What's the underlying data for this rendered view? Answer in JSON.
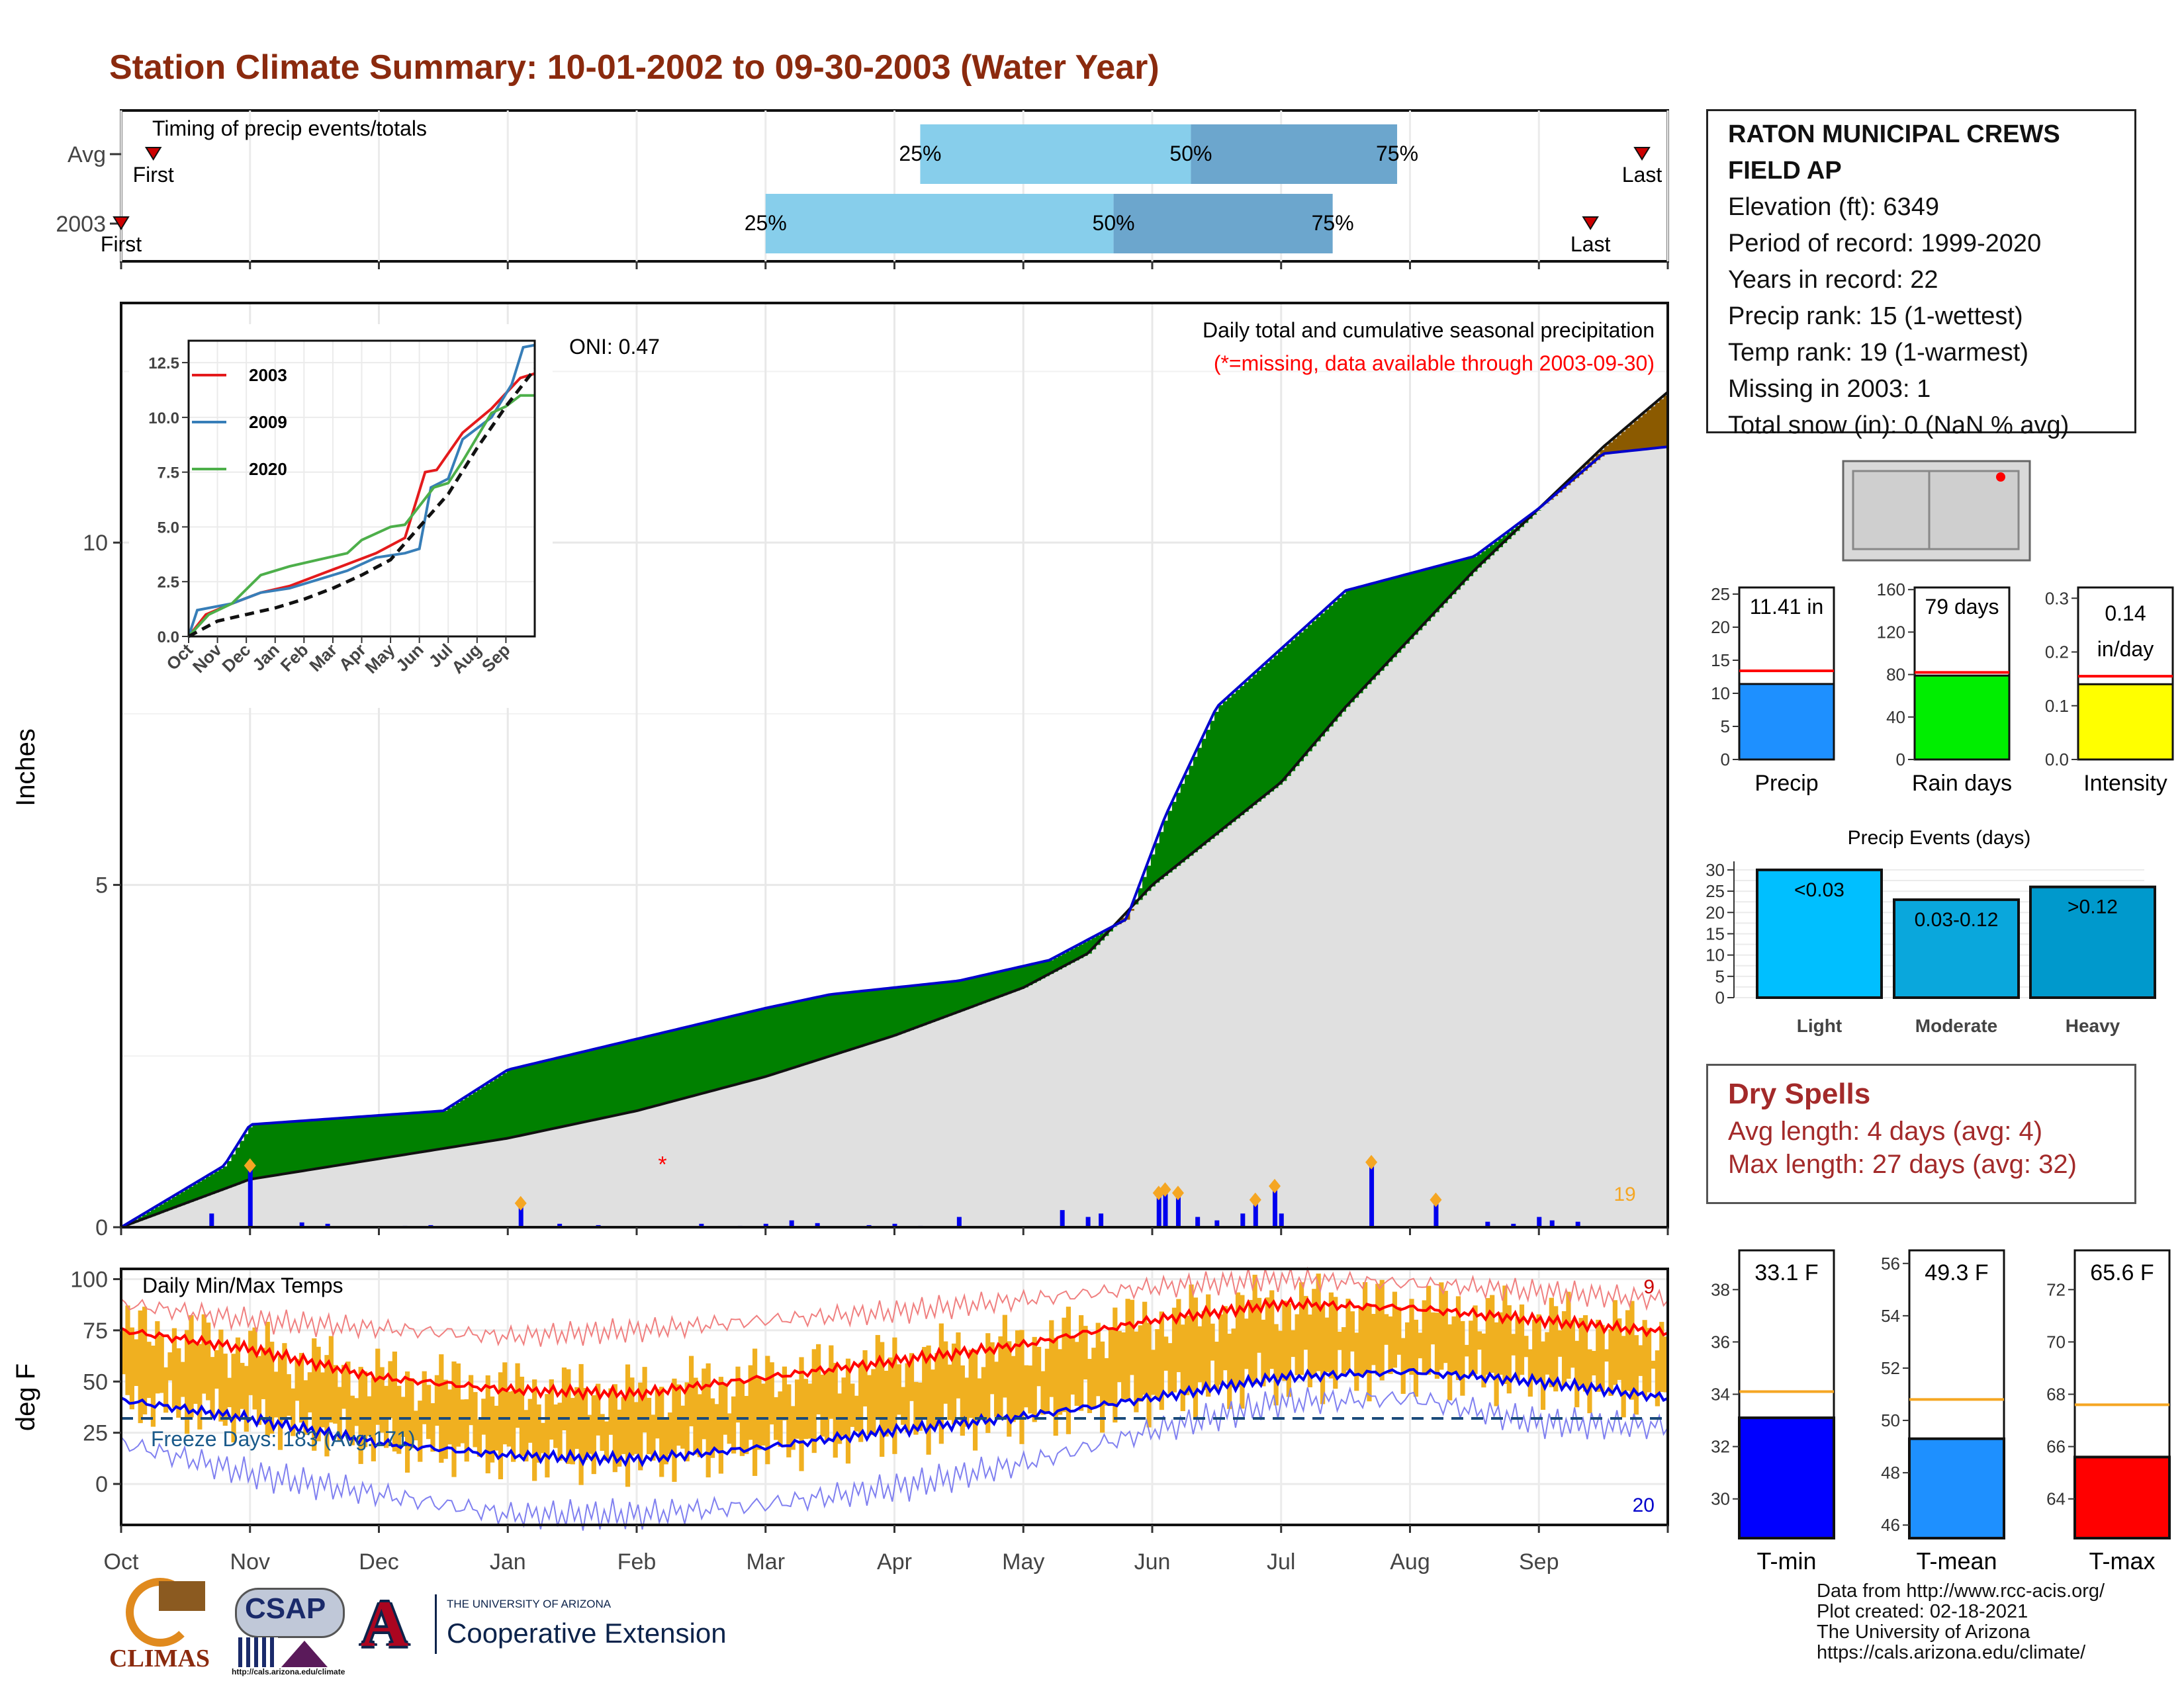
{
  "title": "Station Climate Summary: 10-01-2002 to 09-30-2003 (Water Year)",
  "timing": {
    "title": "Timing of precip events/totals",
    "rows": [
      {
        "label": "Avg",
        "first": "First",
        "last": "Last",
        "p25": "25%",
        "p50": "50%",
        "p75": "75%",
        "x_first": 0.25,
        "x_p25": 6.2,
        "x_p50": 8.3,
        "x_p75": 9.9,
        "x_last": 11.8
      },
      {
        "label": "2003",
        "first": "First",
        "last": "Last",
        "p25": "25%",
        "p50": "50%",
        "p75": "75%",
        "x_first": 0.0,
        "x_p25": 5.0,
        "x_p50": 7.7,
        "x_p75": 9.4,
        "x_last": 11.4
      }
    ]
  },
  "precip": {
    "title": "Daily total and cumulative seasonal precipitation",
    "subtitle": "(*=missing, data available through 2003-09-30)",
    "oni": "ONI: 0.47",
    "ylabel": "Inches",
    "yticks": [
      0,
      5,
      10
    ],
    "ylim": [
      0,
      13.5
    ],
    "count_label": "19",
    "colors": {
      "above": "#008000",
      "below": "#8b5a00",
      "line": "#0000cc",
      "avg": "#111111",
      "fill": "#e0e0e0"
    },
    "cum_2003": [
      [
        0,
        0
      ],
      [
        0.8,
        0.9
      ],
      [
        1.0,
        1.5
      ],
      [
        2.5,
        1.7
      ],
      [
        3.0,
        2.3
      ],
      [
        5.0,
        3.2
      ],
      [
        5.5,
        3.4
      ],
      [
        6.5,
        3.6
      ],
      [
        7.2,
        3.9
      ],
      [
        7.8,
        4.5
      ],
      [
        8.1,
        6.0
      ],
      [
        8.5,
        7.6
      ],
      [
        9.5,
        9.3
      ],
      [
        10.5,
        9.8
      ],
      [
        11.0,
        10.5
      ],
      [
        11.5,
        11.3
      ],
      [
        12,
        11.4
      ]
    ],
    "cum_avg": [
      [
        0,
        0
      ],
      [
        1.0,
        0.7
      ],
      [
        2.0,
        1.0
      ],
      [
        3.0,
        1.3
      ],
      [
        4.0,
        1.7
      ],
      [
        5.0,
        2.2
      ],
      [
        6.0,
        2.8
      ],
      [
        7.0,
        3.5
      ],
      [
        7.5,
        4.0
      ],
      [
        8.0,
        5.0
      ],
      [
        9.0,
        6.5
      ],
      [
        9.5,
        7.6
      ],
      [
        10.0,
        8.6
      ],
      [
        10.5,
        9.6
      ],
      [
        11.0,
        10.5
      ],
      [
        11.5,
        11.4
      ],
      [
        12,
        12.2
      ]
    ],
    "daily": [
      [
        0.7,
        0.2
      ],
      [
        1.0,
        0.9
      ],
      [
        1.4,
        0.07
      ],
      [
        1.6,
        0.05
      ],
      [
        2.2,
        0.02
      ],
      [
        2.4,
        0.03
      ],
      [
        3.1,
        0.35
      ],
      [
        3.4,
        0.05
      ],
      [
        3.7,
        0.03
      ],
      [
        4.5,
        0.05
      ],
      [
        4.8,
        0.02
      ],
      [
        5.0,
        0.05
      ],
      [
        5.2,
        0.1
      ],
      [
        5.4,
        0.06
      ],
      [
        5.8,
        0.03
      ],
      [
        6.0,
        0.05
      ],
      [
        6.2,
        0.02
      ],
      [
        6.5,
        0.15
      ],
      [
        7.3,
        0.25
      ],
      [
        7.5,
        0.15
      ],
      [
        7.6,
        0.2
      ],
      [
        8.05,
        0.5
      ],
      [
        8.1,
        0.55
      ],
      [
        8.2,
        0.5
      ],
      [
        8.35,
        0.15
      ],
      [
        8.5,
        0.1
      ],
      [
        8.7,
        0.2
      ],
      [
        8.8,
        0.4
      ],
      [
        8.95,
        0.6
      ],
      [
        9.0,
        0.2
      ],
      [
        9.7,
        0.95
      ],
      [
        10.2,
        0.4
      ],
      [
        10.6,
        0.08
      ],
      [
        10.8,
        0.05
      ],
      [
        11.0,
        0.15
      ],
      [
        11.1,
        0.1
      ],
      [
        11.3,
        0.08
      ]
    ],
    "missing": [
      [
        4.2,
        1.0
      ]
    ],
    "inset": {
      "xticks": [
        "Oct",
        "Nov",
        "Dec",
        "Jan",
        "Feb",
        "Mar",
        "Apr",
        "May",
        "Jun",
        "Jul",
        "Aug",
        "Sep"
      ],
      "yticks": [
        0.0,
        2.5,
        5.0,
        7.5,
        10.0,
        12.5
      ],
      "ylim": [
        0,
        13.5
      ],
      "series": [
        {
          "name": "2003",
          "color": "#e41a1c",
          "pts": [
            [
              0,
              0
            ],
            [
              0.6,
              1.0
            ],
            [
              1.5,
              1.5
            ],
            [
              2.5,
              2.0
            ],
            [
              3.5,
              2.3
            ],
            [
              4.5,
              2.8
            ],
            [
              5.5,
              3.3
            ],
            [
              6.5,
              3.8
            ],
            [
              7.5,
              4.5
            ],
            [
              8.2,
              7.5
            ],
            [
              8.6,
              7.6
            ],
            [
              9.5,
              9.3
            ],
            [
              10.5,
              10.4
            ],
            [
              11.5,
              11.8
            ],
            [
              12,
              12.0
            ]
          ]
        },
        {
          "name": "2009",
          "color": "#377eb8",
          "pts": [
            [
              0,
              0
            ],
            [
              0.3,
              1.2
            ],
            [
              1.5,
              1.5
            ],
            [
              2.5,
              2.0
            ],
            [
              3.5,
              2.2
            ],
            [
              4.5,
              2.6
            ],
            [
              5.5,
              3.0
            ],
            [
              6.5,
              3.6
            ],
            [
              7.5,
              3.8
            ],
            [
              8.0,
              4.0
            ],
            [
              8.4,
              6.8
            ],
            [
              9.0,
              7.2
            ],
            [
              9.5,
              9.0
            ],
            [
              10.5,
              10.0
            ],
            [
              11.2,
              11.5
            ],
            [
              11.6,
              13.2
            ],
            [
              12,
              13.3
            ]
          ]
        },
        {
          "name": "2020",
          "color": "#4daf4a",
          "pts": [
            [
              0,
              0
            ],
            [
              0.7,
              1.0
            ],
            [
              1.5,
              1.5
            ],
            [
              2.5,
              2.8
            ],
            [
              3.5,
              3.2
            ],
            [
              4.5,
              3.5
            ],
            [
              5.5,
              3.8
            ],
            [
              6.0,
              4.4
            ],
            [
              7.0,
              5.0
            ],
            [
              7.5,
              5.1
            ],
            [
              8.5,
              6.8
            ],
            [
              9.0,
              7.0
            ],
            [
              9.5,
              8.0
            ],
            [
              10.5,
              10.2
            ],
            [
              11.0,
              10.5
            ],
            [
              11.5,
              11.0
            ],
            [
              12,
              11.0
            ]
          ]
        },
        {
          "name": "avg",
          "color": "#111111",
          "dashed": true,
          "pts": [
            [
              0,
              0
            ],
            [
              1,
              0.7
            ],
            [
              2,
              1.0
            ],
            [
              3,
              1.3
            ],
            [
              4,
              1.7
            ],
            [
              5,
              2.2
            ],
            [
              6,
              2.8
            ],
            [
              7,
              3.5
            ],
            [
              8,
              5.0
            ],
            [
              9,
              6.5
            ],
            [
              10,
              8.6
            ],
            [
              11,
              10.5
            ],
            [
              12,
              12.2
            ]
          ]
        }
      ]
    }
  },
  "temps": {
    "title": "Daily Min/Max Temps",
    "ylabel": "deg F",
    "yticks": [
      0,
      25,
      50,
      75,
      100
    ],
    "ylim": [
      -20,
      105
    ],
    "freeze_label": "Freeze Days: 183 (Avg:171)",
    "freeze_line": 32,
    "count_high": "9",
    "count_low": "20",
    "tmax_avg": [
      [
        0,
        75
      ],
      [
        1,
        66
      ],
      [
        2,
        52
      ],
      [
        3,
        46
      ],
      [
        4,
        44
      ],
      [
        5,
        52
      ],
      [
        6,
        60
      ],
      [
        7,
        68
      ],
      [
        8,
        80
      ],
      [
        9,
        88
      ],
      [
        10,
        86
      ],
      [
        11,
        80
      ],
      [
        12,
        74
      ]
    ],
    "tmin_avg": [
      [
        0,
        41
      ],
      [
        1,
        32
      ],
      [
        2,
        20
      ],
      [
        3,
        14
      ],
      [
        4,
        12
      ],
      [
        5,
        18
      ],
      [
        6,
        26
      ],
      [
        7,
        33
      ],
      [
        8,
        42
      ],
      [
        9,
        52
      ],
      [
        10,
        55
      ],
      [
        11,
        50
      ],
      [
        12,
        42
      ]
    ],
    "rec_max": [
      [
        0,
        88
      ],
      [
        1,
        80
      ],
      [
        2,
        76
      ],
      [
        3,
        72
      ],
      [
        4,
        75
      ],
      [
        5,
        80
      ],
      [
        6,
        84
      ],
      [
        7,
        90
      ],
      [
        8,
        96
      ],
      [
        9,
        100
      ],
      [
        10,
        98
      ],
      [
        11,
        94
      ],
      [
        12,
        90
      ]
    ],
    "rec_min": [
      [
        0,
        20
      ],
      [
        1,
        5
      ],
      [
        2,
        -5
      ],
      [
        3,
        -15
      ],
      [
        4,
        -15
      ],
      [
        5,
        -10
      ],
      [
        6,
        -2
      ],
      [
        7,
        10
      ],
      [
        8,
        26
      ],
      [
        9,
        40
      ],
      [
        10,
        42
      ],
      [
        11,
        30
      ],
      [
        12,
        28
      ]
    ],
    "months": [
      "Oct",
      "Nov",
      "Dec",
      "Jan",
      "Feb",
      "Mar",
      "Apr",
      "May",
      "Jun",
      "Jul",
      "Aug",
      "Sep"
    ]
  },
  "station": {
    "name": "RATON MUNICIPAL CREWS",
    "name2": "FIELD AP",
    "elevation": "Elevation (ft): 6349",
    "period": "Period of record: 1999-2020",
    "years": "Years in record: 22",
    "precip_rank": "Precip rank: 15 (1-wettest)",
    "temp_rank": "Temp rank: 19 (1-warmest)",
    "missing": "Missing in 2003: 1",
    "snow": "Total snow (in): 0 (NaN % avg)"
  },
  "bars_precip": [
    {
      "name": "Precip",
      "label": "11.41 in",
      "value": 11.41,
      "avg": 13.4,
      "yticks": [
        0,
        5,
        10,
        15,
        20,
        25
      ],
      "ymax": 26,
      "color": "#1e90ff"
    },
    {
      "name": "Rain days",
      "label": "79 days",
      "value": 79,
      "avg": 82,
      "yticks": [
        0,
        40,
        80,
        120,
        160
      ],
      "ymax": 162,
      "color": "#00ee00"
    },
    {
      "name": "Intensity",
      "label": "0.14",
      "label2": "in/day",
      "value": 0.14,
      "avg": 0.155,
      "yticks": [
        "0.0",
        "0.1",
        "0.2",
        "0.3"
      ],
      "ymax": 0.32,
      "color": "#ffff00"
    }
  ],
  "events": {
    "title": "Precip Events (days)",
    "yticks": [
      0,
      5,
      10,
      15,
      20,
      25,
      30
    ],
    "bars": [
      {
        "name": "Light",
        "label": "<0.03",
        "value": 30,
        "color": "#00bfff"
      },
      {
        "name": "Moderate",
        "label": "0.03-0.12",
        "value": 23,
        "color": "#0aa7dc"
      },
      {
        "name": "Heavy",
        "label": ">0.12",
        "value": 26,
        "color": "#0099cc"
      }
    ]
  },
  "dry": {
    "title": "Dry Spells",
    "avg": "Avg length: 4 days (avg: 4)",
    "max": "Max length: 27 days (avg: 32)"
  },
  "temp_bars": [
    {
      "name": "T-min",
      "label": "33.1 F",
      "value": 33.1,
      "avg": 34.1,
      "yticks": [
        30,
        32,
        34,
        36,
        38
      ],
      "ylim": [
        28.5,
        39.5
      ],
      "color": "#0000ff"
    },
    {
      "name": "T-mean",
      "label": "49.3 F",
      "value": 49.3,
      "avg": 50.8,
      "yticks": [
        46,
        48,
        50,
        52,
        54,
        56
      ],
      "ylim": [
        45.5,
        56.5
      ],
      "color": "#1e90ff"
    },
    {
      "name": "T-max",
      "label": "65.6 F",
      "value": 65.6,
      "avg": 67.6,
      "yticks": [
        64,
        66,
        68,
        70,
        72
      ],
      "ylim": [
        62.5,
        73.5
      ],
      "color": "#ff0000"
    }
  ],
  "credits": [
    "Data from http://www.rcc-acis.org/",
    "Plot created: 02-18-2021",
    "The University of Arizona",
    "https://cals.arizona.edu/climate/"
  ],
  "logos": {
    "climas": "CLIMAS",
    "csap": "CSAP",
    "csap_url": "http://cals.arizona.edu/climate",
    "ua_small": "THE UNIVERSITY OF ARIZONA",
    "ua_big": "Cooperative Extension"
  }
}
